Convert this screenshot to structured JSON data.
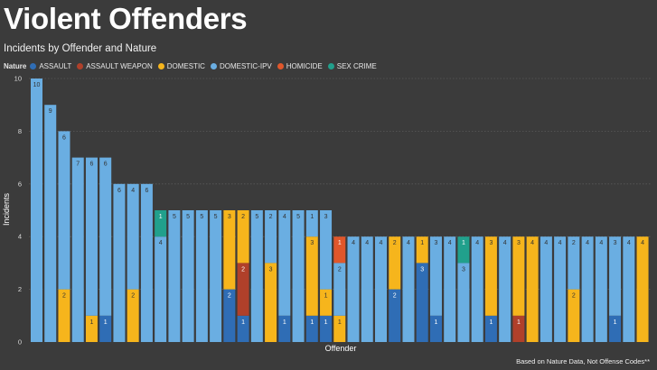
{
  "page": {
    "title": "Violent Offenders",
    "subtitle": "Incidents by Offender and Nature",
    "footnote": "Based on Nature Data, Not Offense Codes**"
  },
  "legend": {
    "title": "Nature",
    "items": [
      {
        "label": "ASSAULT",
        "color": "#2f6db5"
      },
      {
        "label": "ASSAULT WEAPON",
        "color": "#b0402a"
      },
      {
        "label": "DOMESTIC",
        "color": "#f6b51c"
      },
      {
        "label": "DOMESTIC-IPV",
        "color": "#6aaee2"
      },
      {
        "label": "HOMICIDE",
        "color": "#e0572b"
      },
      {
        "label": "SEX CRIME",
        "color": "#21a08c"
      }
    ]
  },
  "chart_data": {
    "type": "bar",
    "stacked": true,
    "title": "Incidents by Offender and Nature",
    "xlabel": "Offender",
    "ylabel": "Incidents",
    "ylim": [
      0,
      10
    ],
    "yticks": [
      0,
      2,
      4,
      6,
      8,
      10
    ],
    "grid": true,
    "legend_position": "top-left",
    "series_names": [
      "ASSAULT",
      "ASSAULT WEAPON",
      "DOMESTIC",
      "DOMESTIC-IPV",
      "HOMICIDE",
      "SEX CRIME"
    ],
    "colors": {
      "ASSAULT": "#2f6db5",
      "ASSAULT WEAPON": "#b0402a",
      "DOMESTIC": "#f6b51c",
      "DOMESTIC-IPV": "#6aaee2",
      "HOMICIDE": "#e0572b",
      "SEX CRIME": "#21a08c"
    },
    "bars": [
      [
        [
          "DOMESTIC-IPV",
          10
        ]
      ],
      [
        [
          "DOMESTIC-IPV",
          9
        ]
      ],
      [
        [
          "DOMESTIC",
          2
        ],
        [
          "DOMESTIC-IPV",
          6
        ]
      ],
      [
        [
          "DOMESTIC-IPV",
          7
        ]
      ],
      [
        [
          "DOMESTIC",
          1
        ],
        [
          "DOMESTIC-IPV",
          6
        ]
      ],
      [
        [
          "ASSAULT",
          1
        ],
        [
          "DOMESTIC-IPV",
          6
        ]
      ],
      [
        [
          "DOMESTIC-IPV",
          6
        ]
      ],
      [
        [
          "DOMESTIC",
          2
        ],
        [
          "DOMESTIC-IPV",
          4
        ]
      ],
      [
        [
          "DOMESTIC-IPV",
          6
        ]
      ],
      [
        [
          "DOMESTIC-IPV",
          4
        ],
        [
          "SEX CRIME",
          1
        ]
      ],
      [
        [
          "DOMESTIC-IPV",
          5
        ]
      ],
      [
        [
          "DOMESTIC-IPV",
          5
        ]
      ],
      [
        [
          "DOMESTIC-IPV",
          5
        ]
      ],
      [
        [
          "DOMESTIC-IPV",
          5
        ]
      ],
      [
        [
          "ASSAULT",
          2
        ],
        [
          "DOMESTIC",
          3
        ]
      ],
      [
        [
          "ASSAULT",
          1
        ],
        [
          "ASSAULT WEAPON",
          2
        ],
        [
          "DOMESTIC",
          2
        ]
      ],
      [
        [
          "DOMESTIC-IPV",
          5
        ]
      ],
      [
        [
          "DOMESTIC",
          3
        ],
        [
          "DOMESTIC-IPV",
          2
        ]
      ],
      [
        [
          "ASSAULT",
          1
        ],
        [
          "DOMESTIC-IPV",
          4
        ]
      ],
      [
        [
          "DOMESTIC-IPV",
          5
        ]
      ],
      [
        [
          "ASSAULT",
          1
        ],
        [
          "DOMESTIC",
          3
        ],
        [
          "DOMESTIC-IPV",
          1
        ]
      ],
      [
        [
          "ASSAULT",
          1
        ],
        [
          "DOMESTIC",
          1
        ],
        [
          "DOMESTIC-IPV",
          3
        ]
      ],
      [
        [
          "DOMESTIC",
          1
        ],
        [
          "DOMESTIC-IPV",
          2
        ],
        [
          "HOMICIDE",
          1
        ]
      ],
      [
        [
          "DOMESTIC-IPV",
          4
        ]
      ],
      [
        [
          "DOMESTIC-IPV",
          4
        ]
      ],
      [
        [
          "DOMESTIC-IPV",
          4
        ]
      ],
      [
        [
          "ASSAULT",
          2
        ],
        [
          "DOMESTIC",
          2
        ]
      ],
      [
        [
          "DOMESTIC-IPV",
          4
        ]
      ],
      [
        [
          "ASSAULT",
          3
        ],
        [
          "DOMESTIC",
          1
        ]
      ],
      [
        [
          "ASSAULT",
          1
        ],
        [
          "DOMESTIC-IPV",
          3
        ]
      ],
      [
        [
          "DOMESTIC-IPV",
          4
        ]
      ],
      [
        [
          "DOMESTIC-IPV",
          3
        ],
        [
          "SEX CRIME",
          1
        ]
      ],
      [
        [
          "DOMESTIC-IPV",
          4
        ]
      ],
      [
        [
          "ASSAULT",
          1
        ],
        [
          "DOMESTIC",
          3
        ]
      ],
      [
        [
          "DOMESTIC-IPV",
          4
        ]
      ],
      [
        [
          "ASSAULT WEAPON",
          1
        ],
        [
          "DOMESTIC",
          3
        ]
      ],
      [
        [
          "DOMESTIC",
          4
        ]
      ],
      [
        [
          "DOMESTIC-IPV",
          4
        ]
      ],
      [
        [
          "DOMESTIC-IPV",
          4
        ]
      ],
      [
        [
          "DOMESTIC",
          2
        ],
        [
          "DOMESTIC-IPV",
          2
        ]
      ],
      [
        [
          "DOMESTIC-IPV",
          4
        ]
      ],
      [
        [
          "DOMESTIC-IPV",
          4
        ]
      ],
      [
        [
          "ASSAULT",
          1
        ],
        [
          "DOMESTIC-IPV",
          3
        ]
      ],
      [
        [
          "DOMESTIC-IPV",
          4
        ]
      ],
      [
        [
          "DOMESTIC",
          4
        ]
      ]
    ]
  }
}
